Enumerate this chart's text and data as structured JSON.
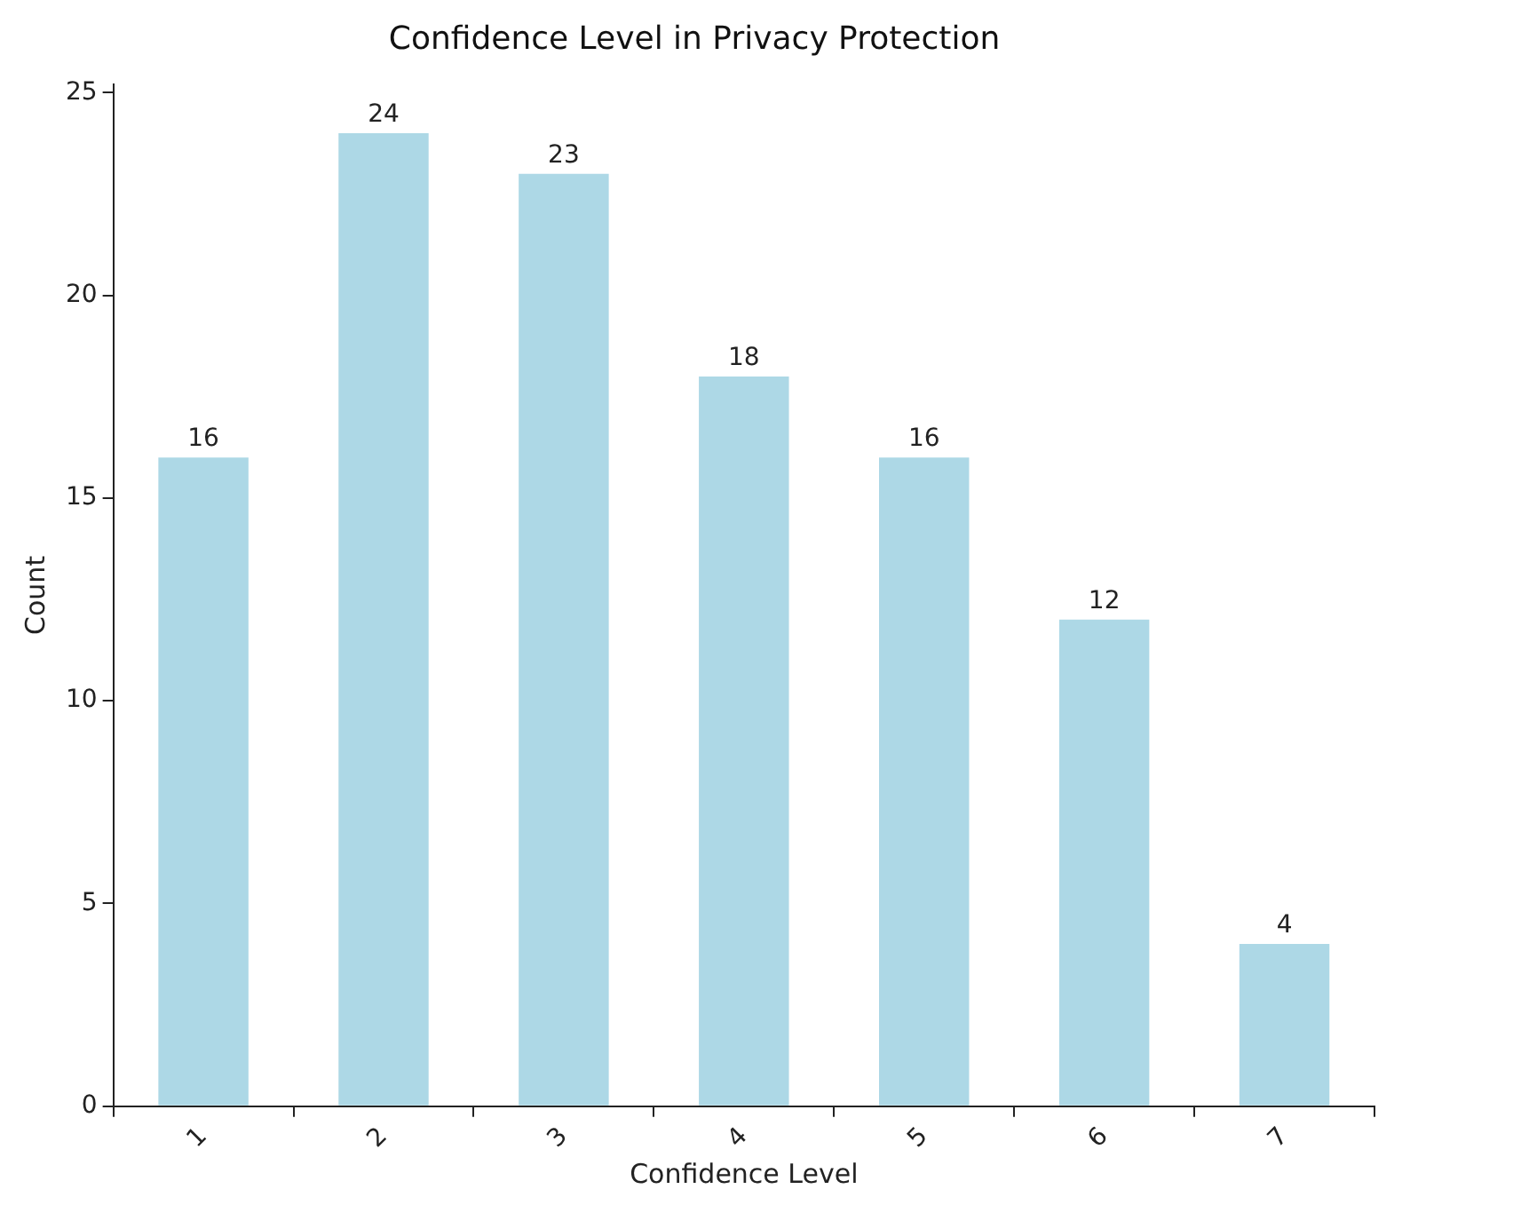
{
  "chart_data": {
    "type": "bar",
    "title": "Confidence Level in Privacy Protection",
    "xlabel": "Confidence Level",
    "ylabel": "Count",
    "categories": [
      "1",
      "2",
      "3",
      "4",
      "5",
      "6",
      "7"
    ],
    "values": [
      16,
      24,
      23,
      18,
      16,
      12,
      4
    ],
    "color": "#add8e6",
    "ylim": [
      0,
      25.2
    ],
    "yticks": [
      0,
      5,
      10,
      15,
      20,
      25
    ],
    "grid": false,
    "legend": false,
    "data_labels": true
  }
}
